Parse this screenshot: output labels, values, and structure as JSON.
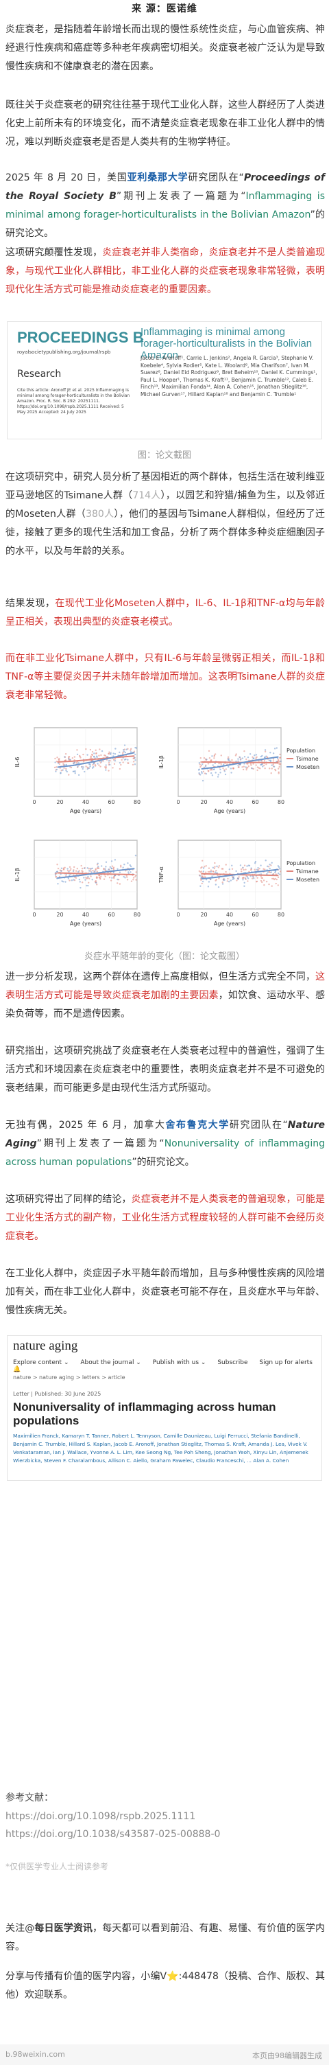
{
  "source_line": "来 源：医诺维",
  "p1": "炎症衰老，是指随着年龄增长而出现的慢性系统性炎症，与心血管疾病、神经退行性疾病和癌症等多种老年疾病密切相关。炎症衰老被广泛认为是导致慢性疾病和不健康衰老的潜在因素。",
  "p2": "既往关于炎症衰老的研究往往基于现代工业化人群，这些人群经历了人类进化史上前所未有的环境变化，而不清楚炎症衰老现象在非工业化人群中的情况，难以判断炎症衰老是否是人类共有的生物学特征。",
  "p3": {
    "a": "2025 年 8 月 20 日，美国",
    "b": "亚利桑那大学",
    "c": "研究团队在“",
    "d": "Proceedings of the Royal Society B",
    "e": "”期刊上发表了一篇题为“",
    "f": "Inflammaging is minimal among forager-horticulturalists in the Bolivian Amazon",
    "g": "”的研究论文。"
  },
  "p4": {
    "a": "这项研究颠覆性发现，",
    "b": "炎症衰老并非人类宿命，炎症衰老并不是人类普遍现象，与现代工业化人群相比，非工业化人群的炎症衰老现象非常轻微，表明现代化生活方式可能是推动炎症衰老的重要因素。"
  },
  "paper1": {
    "journal": "PROCEEDINGS B",
    "url": "royalsocietypublishing.org/journal/rspb",
    "section": "Research",
    "cite": "Cite this article: Aronoff JE et al. 2025 Inflammaging is minimal among forager-horticulturalists in the Bolivian Amazon. Proc. R. Soc. B 292: 20251111. https://doi.org/10.1098/rspb.2025.1111 Received: 5 May 2025 Accepted: 24 July 2025",
    "title": "Inflammaging is minimal among forager-horticulturalists in the Bolivian Amazon",
    "authors": "Jacob E. Aronoff¹, Carrie L. Jenkins², Angela R. Garcia³, Stephanie V. Koebele⁴, Sylvia Rodier⁵, Kate L. Woolard⁶, Mia Charifson⁷, Ivan M. Suarez⁸, Daniel Eid Rodriguez⁹, Bret Beheim¹⁰, Daniel K. Cummings¹, Paul L. Hooper¹, Thomas K. Kraft¹¹, Benjamin C. Trumble¹², Caleb E. Finch¹³, Maximilian Fonda¹⁴, Alan A. Cohen¹⁵, Jonathan Stieglitz¹⁶, Michael Gurven¹⁷, Hillard Kaplan¹⁸ and Benjamin C. Trumble¹"
  },
  "cap1": "图：论文截图",
  "p5": {
    "a": "在这项研究中，研究人员分析了基因相近的两个群体，包括生活在玻利维亚亚马逊地区的Tsimane人群（",
    "b": "714人",
    "c": "），以园艺和狩猎/捕鱼为生，以及邻近的Moseten人群（",
    "d": "380人",
    "e": "），他们的基因与Tsimane人群相似，但经历了迁徙，接触了更多的现代生活和加工食品，分析了两个群体多种炎症细胞因子的水平，以及与年龄的关系。"
  },
  "p6": {
    "a": "结果发现，",
    "b": "在现代工业化Moseten人群中，IL-6、IL-1β和TNF-α均与年龄呈正相关，表现出典型的炎症衰老模式。"
  },
  "p7": "而在非工业化Tsimane人群中，只有IL-6与年龄呈微弱正相关，而IL-1β和TNF-α等主要促炎因子并未随年龄增加而增加。这表明Tsimane人群的炎症衰老非常轻微。",
  "chart_data": {
    "type": "scatter",
    "xlabel": "Age (years)",
    "legend": {
      "title": "Population",
      "entries": [
        "Tsimane",
        "Moseten"
      ],
      "placement": "right"
    },
    "colors": {
      "Tsimane": "#e0867c",
      "Moseten": "#6d95cc"
    },
    "panels": [
      {
        "ylabel": "IL-6",
        "ylim": [
          -4,
          4
        ],
        "xlim": [
          0,
          80
        ],
        "xticks": [
          0,
          20,
          40,
          60,
          80
        ],
        "series": [
          {
            "name": "Tsimane",
            "trend": [
              [
                18,
                0.0
              ],
              [
                30,
                0.1
              ],
              [
                45,
                0.3
              ],
              [
                60,
                0.5
              ],
              [
                78,
                0.7
              ]
            ]
          },
          {
            "name": "Moseten",
            "trend": [
              [
                18,
                -0.6
              ],
              [
                30,
                -0.4
              ],
              [
                45,
                0.0
              ],
              [
                60,
                0.5
              ],
              [
                78,
                1.1
              ]
            ]
          }
        ]
      },
      {
        "ylabel": "IL-1β",
        "ylim": [
          -4,
          4
        ],
        "xlim": [
          0,
          80
        ],
        "xticks": [
          0,
          20,
          40,
          60,
          80
        ],
        "series": [
          {
            "name": "Tsimane",
            "trend": [
              [
                18,
                0.0
              ],
              [
                30,
                0.0
              ],
              [
                45,
                -0.05
              ],
              [
                60,
                -0.05
              ],
              [
                78,
                -0.1
              ]
            ]
          },
          {
            "name": "Moseten",
            "trend": [
              [
                18,
                -0.8
              ],
              [
                30,
                -0.6
              ],
              [
                45,
                -0.2
              ],
              [
                60,
                0.2
              ],
              [
                78,
                0.6
              ]
            ]
          }
        ]
      },
      {
        "ylabel": "IL-1β",
        "ylim": [
          -4,
          4
        ],
        "xlim": [
          0,
          80
        ],
        "xticks": [
          0,
          20,
          40,
          60,
          80
        ],
        "series": [
          {
            "name": "Tsimane",
            "trend": [
              [
                18,
                0.2
              ],
              [
                30,
                0.15
              ],
              [
                45,
                0.1
              ],
              [
                60,
                0.05
              ],
              [
                78,
                0.0
              ]
            ]
          },
          {
            "name": "Moseten",
            "trend": [
              [
                18,
                -0.4
              ],
              [
                30,
                -0.2
              ],
              [
                45,
                0.1
              ],
              [
                60,
                0.4
              ],
              [
                78,
                0.7
              ]
            ]
          }
        ]
      },
      {
        "ylabel": "TNF-α",
        "ylim": [
          -4,
          4
        ],
        "xlim": [
          0,
          80
        ],
        "xticks": [
          0,
          20,
          40,
          60,
          80
        ],
        "series": [
          {
            "name": "Tsimane",
            "trend": [
              [
                18,
                0.1
              ],
              [
                30,
                0.05
              ],
              [
                45,
                0.0
              ],
              [
                60,
                -0.05
              ],
              [
                78,
                -0.1
              ]
            ]
          },
          {
            "name": "Moseten",
            "trend": [
              [
                18,
                -0.5
              ],
              [
                30,
                -0.3
              ],
              [
                45,
                0.0
              ],
              [
                60,
                0.3
              ],
              [
                78,
                0.6
              ]
            ]
          }
        ]
      }
    ]
  },
  "cap2": "炎症水平随年龄的变化（图：论文截图）",
  "p8": {
    "a": "进一步分析发现，这两个群体在遗传上高度相似，但生活方式完全不同，",
    "b": "这表明生活方式可能是导致炎症衰老加剧的主要因素",
    "c": "，如饮食、运动水平、感染负荷等，而不是遗传因素。"
  },
  "p9": "研究指出，这项研究挑战了炎症衰老在人类衰老过程中的普遍性，强调了生活方式和环境因素在炎症衰老中的重要性，表明炎症衰老并不是不可避免的衰老结果，而可能更多是由现代生活方式所驱动。",
  "p10": {
    "a": "无独有偶，2025 年 6 月，加拿大",
    "b": "舍布鲁克大学",
    "c": "研究团队在“",
    "d": "Nature Aging",
    "e": "”期刊上发表了一篇题为“",
    "f": "Nonuniversality of inflammaging across human populations",
    "g": "”的研究论文。"
  },
  "p11": {
    "a": "这项研究得出了同样的结论，",
    "b": "炎症衰老并不是人类衰老的普遍现象，可能是工业化生活方式的副产物，工业化生活方式程度较轻的人群可能不会经历炎症衰老。"
  },
  "p12": "在工业化人群中，炎症因子水平随年龄而增加，且与多种慢性疾病的风险增加有关，而在非工业化人群中，炎症衰老可能不存在，且炎症水平与年龄、慢性疾病无关。",
  "paper2": {
    "journal": "nature aging",
    "nav": [
      "Explore content ⌄",
      "About the journal ⌄",
      "Publish with us ⌄",
      "Subscribe",
      "Sign up for alerts 🔔"
    ],
    "crumb": "nature > nature aging > letters > article",
    "meta": "Letter  |  Published: 30 June 2025",
    "title": "Nonuniversality of inflammaging across human populations",
    "authors": "Maximilien Franck, Kamaryn T. Tanner, Robert L. Tennyson, Camille Daunizeau, Luigi Ferrucci, Stefania Bandinelli, Benjamin C. Trumble, Hillard S. Kaplan, Jacob E. Aronoff, Jonathan Stieglitz, Thomas S. Kraft, Amanda J. Lea, Vivek V. Venkataraman, Ian J. Wallace, Yvonne A. L. Lim, Kee Seong Ng, Tee Poh Sheng, Jonathan Yeoh, Xinyu Lin, Anjemenek Wierzbicka, Steven F. Charalambous, Allison C. Aiello, Graham Pawelec, Claudio Franceschi, ... Alan A. Cohen"
  },
  "refs_title": "参考文献：",
  "refs": [
    "https://doi.org/10.1098/rspb.2025.1111",
    "https://doi.org/10.1038/s43587-025-00888-0"
  ],
  "note": "*仅供医学专业人士阅读参考",
  "p13": {
    "a": "关注@",
    "b": "每日医学资讯",
    "c": "，每天都可以看到前沿、有趣、易懂、有价值的医学内容。"
  },
  "p14": "分享与传播有价值的医学内容，小编V⭐:448478（投稿、合作、版权、其他）欢迎联系。",
  "footer": {
    "left": "b.98weixin.com",
    "right": "本页由98编辑器生成"
  }
}
